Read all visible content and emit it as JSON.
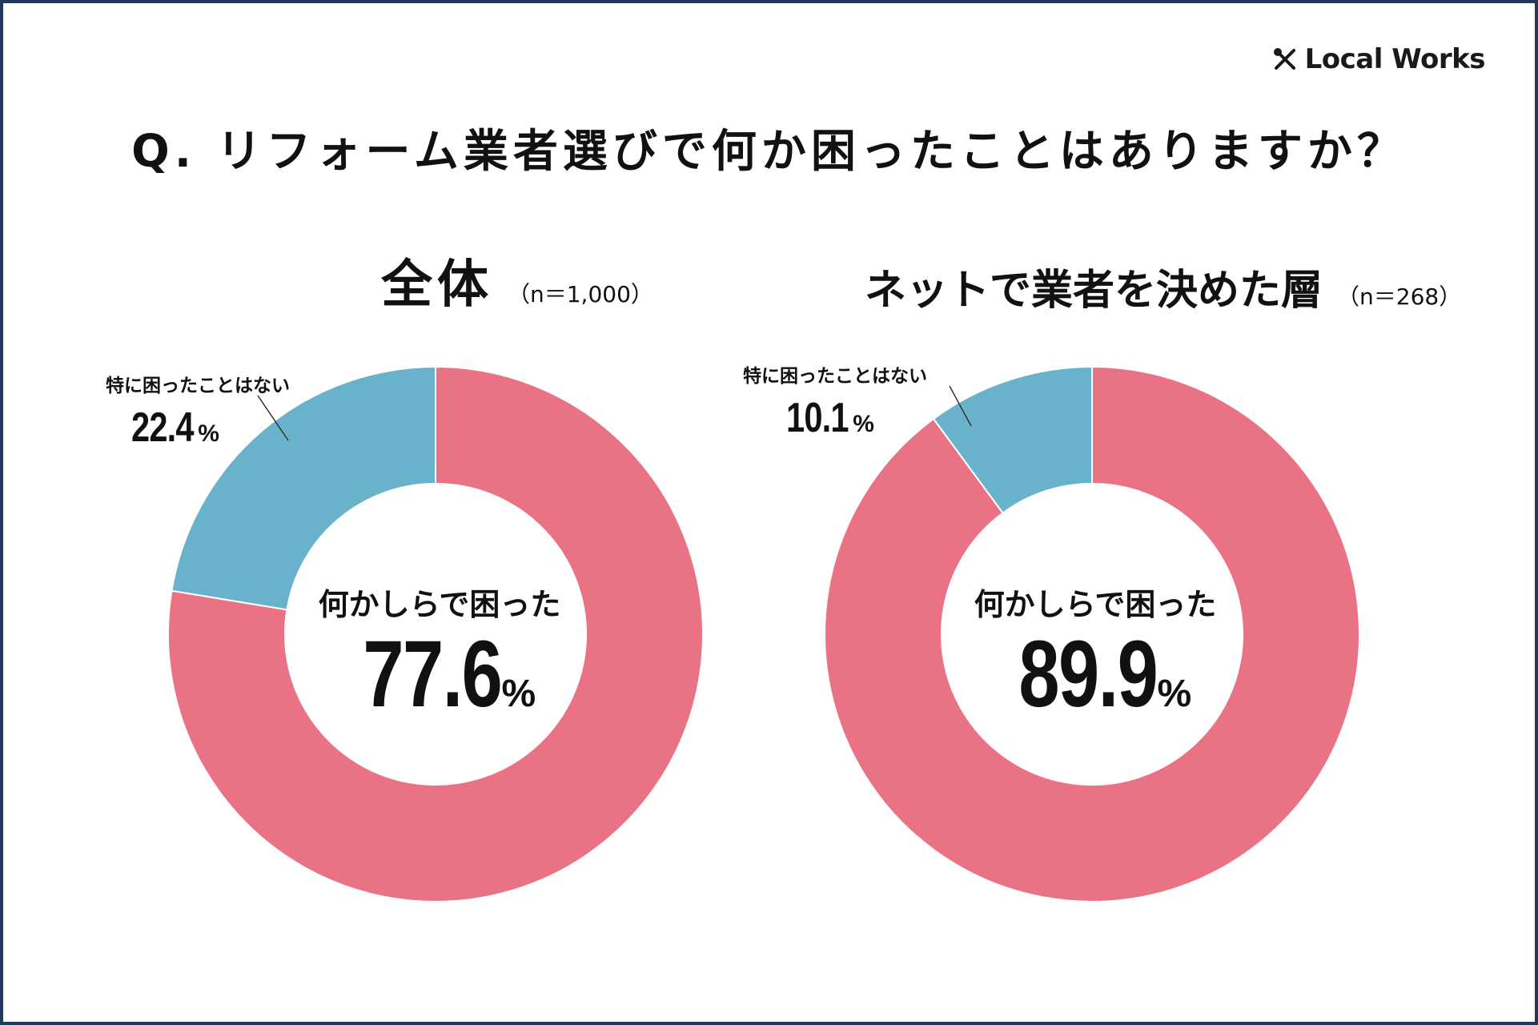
{
  "brand": {
    "name": "Local Works",
    "logo_icon": "crossed-tools-icon"
  },
  "question": "Q. リフォーム業者選びで何か困ったことはありますか？",
  "colors": {
    "troubled": "#e97284",
    "not_troubled": "#68b2cb",
    "border": "#1f3a5f"
  },
  "chart_data": [
    {
      "type": "pie",
      "variant": "donut",
      "title": "全体",
      "sample": "（n＝1,000）",
      "slices": [
        {
          "label": "何かしらで困った",
          "value": 77.6,
          "display": "77.6",
          "unit": "%",
          "color": "#e97284"
        },
        {
          "label": "特に困ったことはない",
          "value": 22.4,
          "display": "22.4",
          "unit": "%",
          "color": "#68b2cb"
        }
      ]
    },
    {
      "type": "pie",
      "variant": "donut",
      "title": "ネットで業者を決めた層",
      "sample": "（n＝268）",
      "slices": [
        {
          "label": "何かしらで困った",
          "value": 89.9,
          "display": "89.9",
          "unit": "%",
          "color": "#e97284"
        },
        {
          "label": "特に困ったことはない",
          "value": 10.1,
          "display": "10.1",
          "unit": "%",
          "color": "#68b2cb"
        }
      ]
    }
  ]
}
